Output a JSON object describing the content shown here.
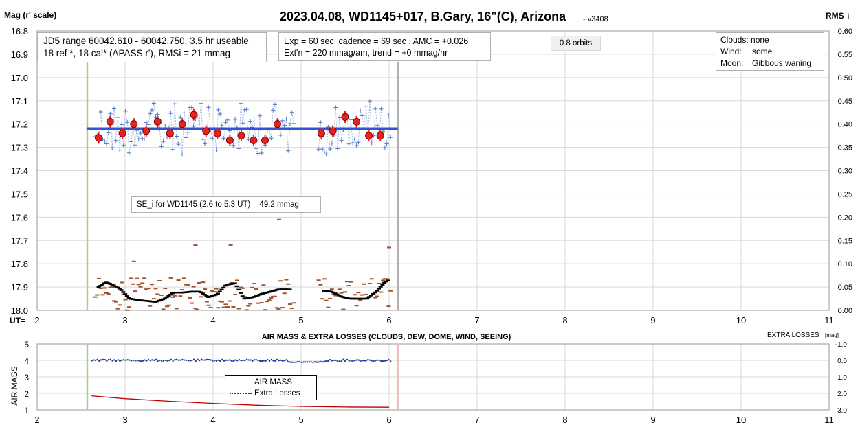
{
  "title": "2023.04.08, WD1145+017, B.Gary, 16\"(C), Arizona",
  "version": "- v3408",
  "y_left_label": "Mag (r' scale)",
  "y_right_label": "RMS",
  "y_right_label_sub": "i",
  "x_axis_label": "UT=",
  "info_box_1": {
    "line1": "JD5 range 60042.610 - 60042.750, 3.5 hr useable",
    "line2": "18 ref *, 18 cal*  (APASS r'), RMSi = 21 mmag"
  },
  "info_box_2": {
    "line1": "Exp = 60 sec, cadence = 69 sec , AMC = +0.026",
    "line2": "Ext'n = 220 mmag/am, trend = +0 mmag/hr"
  },
  "orbits_label": "0.8 orbits",
  "conditions": {
    "clouds_label": "Clouds:",
    "clouds_value": "none",
    "wind_label": "Wind:",
    "wind_value": "some",
    "moon_label": "Moon:",
    "moon_value": "Gibbous waning"
  },
  "se_label": "SE_i for WD1145 (2.6 to 5.3 UT) = 49.2 mmag",
  "bottom_title": "AIR MASS & EXTRA LOSSES (CLOUDS, DEW, DOME, WIND, SEEING)",
  "bottom_left_label": "AIR MASS",
  "bottom_right_label": "EXTRA LOSSES",
  "bottom_right_unit": "[mag]",
  "legend": {
    "airmass": "AIR MASS",
    "extra": "Extra Losses"
  },
  "colors": {
    "mag_points": "#e8231f",
    "raw_points": "#4472c4",
    "model_line": "#2f55d4",
    "rms_raw": "#a0522d",
    "rms_avg": "#000000",
    "start_line": "#a8d08d",
    "end_line": "#b0b0b0",
    "airmass": "#c00000",
    "extra": "#1f3d99",
    "end_line_bottom": "#f4b4b4"
  },
  "chart_data": [
    {
      "type": "scatter",
      "name": "light curve",
      "x_ticks": [
        "2",
        "3",
        "4",
        "5",
        "6",
        "7",
        "8",
        "9",
        "10",
        "11"
      ],
      "y_ticks_left": [
        "16.8",
        "16.9",
        "17.0",
        "17.1",
        "17.2",
        "17.3",
        "17.4",
        "17.5",
        "17.6",
        "17.7",
        "17.8",
        "17.9",
        "18.0"
      ],
      "y_ticks_right": [
        "0.60",
        "0.55",
        "0.50",
        "0.45",
        "0.40",
        "0.35",
        "0.30",
        "0.25",
        "0.20",
        "0.15",
        "0.10",
        "0.05",
        "0.00"
      ],
      "xlim": [
        2,
        11
      ],
      "ylim_left": [
        18.0,
        16.8
      ],
      "ylim_right": [
        0.0,
        0.6
      ],
      "start_ut": 2.57,
      "end_ut": 6.1,
      "model_line": {
        "x": [
          2.57,
          6.1
        ],
        "y": [
          17.22,
          17.22
        ]
      },
      "binned": [
        [
          2.7,
          17.26
        ],
        [
          2.83,
          17.19
        ],
        [
          2.97,
          17.24
        ],
        [
          3.1,
          17.2
        ],
        [
          3.24,
          17.23
        ],
        [
          3.37,
          17.19
        ],
        [
          3.51,
          17.24
        ],
        [
          3.65,
          17.2
        ],
        [
          3.78,
          17.16
        ],
        [
          3.92,
          17.23
        ],
        [
          4.05,
          17.24
        ],
        [
          4.19,
          17.27
        ],
        [
          4.32,
          17.25
        ],
        [
          4.46,
          17.27
        ],
        [
          4.59,
          17.27
        ],
        [
          4.73,
          17.2
        ],
        [
          5.23,
          17.24
        ],
        [
          5.36,
          17.23
        ],
        [
          5.5,
          17.17
        ],
        [
          5.63,
          17.19
        ],
        [
          5.77,
          17.25
        ],
        [
          5.9,
          17.25
        ]
      ],
      "binned_err": 0.025,
      "rms_avg": [
        [
          2.7,
          0.05
        ],
        [
          2.78,
          0.06
        ],
        [
          2.86,
          0.055
        ],
        [
          2.95,
          0.045
        ],
        [
          3.05,
          0.025
        ],
        [
          3.15,
          0.022
        ],
        [
          3.25,
          0.02
        ],
        [
          3.35,
          0.018
        ],
        [
          3.45,
          0.025
        ],
        [
          3.55,
          0.038
        ],
        [
          3.65,
          0.038
        ],
        [
          3.75,
          0.04
        ],
        [
          3.85,
          0.04
        ],
        [
          3.95,
          0.028
        ],
        [
          4.05,
          0.035
        ],
        [
          4.15,
          0.055
        ],
        [
          4.25,
          0.058
        ],
        [
          4.35,
          0.025
        ],
        [
          4.45,
          0.028
        ],
        [
          4.55,
          0.035
        ],
        [
          4.65,
          0.04
        ],
        [
          4.75,
          0.045
        ],
        [
          4.85,
          0.045
        ],
        [
          5.25,
          0.042
        ],
        [
          5.35,
          0.04
        ],
        [
          5.45,
          0.03
        ],
        [
          5.55,
          0.025
        ],
        [
          5.65,
          0.025
        ],
        [
          5.75,
          0.025
        ],
        [
          5.85,
          0.04
        ],
        [
          5.95,
          0.06
        ],
        [
          6.0,
          0.065
        ]
      ]
    },
    {
      "type": "line",
      "name": "air mass & extra losses",
      "x_ticks": [
        "2",
        "3",
        "4",
        "5",
        "6",
        "7",
        "8",
        "9",
        "10",
        "11"
      ],
      "y_ticks_left": [
        "5",
        "4",
        "3",
        "2",
        "1"
      ],
      "y_ticks_right": [
        "-1.0",
        "0.0",
        "1.0",
        "2.0",
        "3.0"
      ],
      "xlim": [
        2,
        11
      ],
      "ylim_left": [
        1,
        5
      ],
      "ylim_right": [
        3.0,
        -1.0
      ],
      "airmass": {
        "x": [
          2.62,
          3.0,
          3.5,
          4.0,
          4.5,
          5.0,
          5.5,
          6.0
        ],
        "y": [
          1.85,
          1.68,
          1.52,
          1.39,
          1.28,
          1.21,
          1.17,
          1.16
        ]
      },
      "extra_losses_mean": 0.0,
      "start_ut": 2.57,
      "end_ut": 6.1
    }
  ]
}
